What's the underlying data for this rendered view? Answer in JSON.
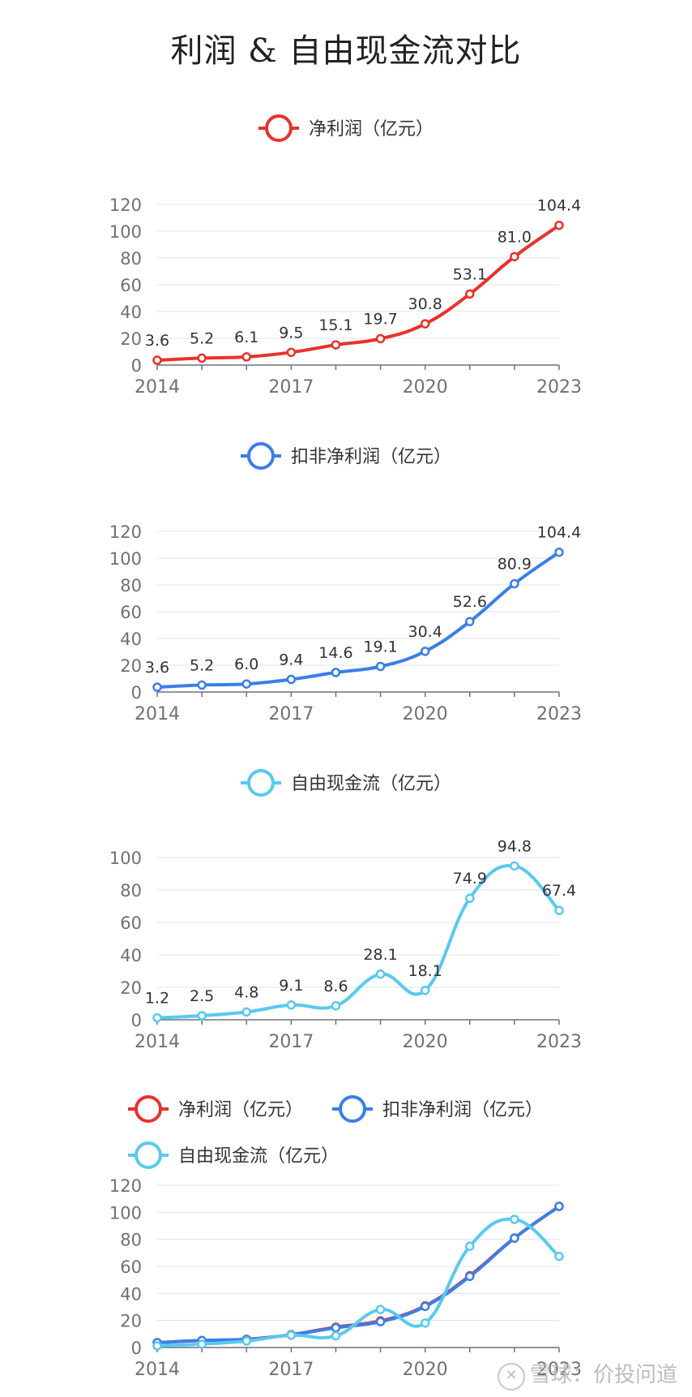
{
  "page": {
    "title": "利润 & 自由现金流对比"
  },
  "watermark": {
    "logo": "✕",
    "text": "雪球：价投问道"
  },
  "colors": {
    "net_profit": "#e8322b",
    "deducted_profit": "#3a7fe8",
    "free_cash_flow": "#59c9f0",
    "grid": "#e0e3f0",
    "axis": "#6e7079"
  },
  "chart_data": [
    {
      "type": "line",
      "x": [
        2014,
        2015,
        2016,
        2017,
        2018,
        2019,
        2020,
        2021,
        2022,
        2023
      ],
      "x_ticks": [
        "2014",
        "2017",
        "2020",
        "2023"
      ],
      "ylim": [
        0,
        120
      ],
      "y_ticks": [
        0,
        20,
        40,
        60,
        80,
        100,
        120
      ],
      "grid": true,
      "legend_position": "top-center",
      "series": [
        {
          "name": "净利润（亿元）",
          "color": "#e8322b",
          "values": [
            3.6,
            5.2,
            6.1,
            9.5,
            15.1,
            19.7,
            30.8,
            53.1,
            81.0,
            104.4
          ],
          "labels": [
            "3.6",
            "5.2",
            "6.1",
            "9.5",
            "15.1",
            "19.7",
            "30.8",
            "53.1",
            "81.0",
            "104.4"
          ]
        }
      ]
    },
    {
      "type": "line",
      "x": [
        2014,
        2015,
        2016,
        2017,
        2018,
        2019,
        2020,
        2021,
        2022,
        2023
      ],
      "x_ticks": [
        "2014",
        "2017",
        "2020",
        "2023"
      ],
      "ylim": [
        0,
        120
      ],
      "y_ticks": [
        0,
        20,
        40,
        60,
        80,
        100,
        120
      ],
      "grid": true,
      "legend_position": "top-center",
      "series": [
        {
          "name": "扣非净利润（亿元）",
          "color": "#3a7fe8",
          "values": [
            3.6,
            5.2,
            6.0,
            9.4,
            14.6,
            19.1,
            30.4,
            52.6,
            80.9,
            104.4
          ],
          "labels": [
            "3.6",
            "5.2",
            "6.0",
            "9.4",
            "14.6",
            "19.1",
            "30.4",
            "52.6",
            "80.9",
            "104.4"
          ]
        }
      ]
    },
    {
      "type": "line",
      "x": [
        2014,
        2015,
        2016,
        2017,
        2018,
        2019,
        2020,
        2021,
        2022,
        2023
      ],
      "x_ticks": [
        "2014",
        "2017",
        "2020",
        "2023"
      ],
      "ylim": [
        0,
        100
      ],
      "y_ticks": [
        0,
        20,
        40,
        60,
        80,
        100
      ],
      "grid": true,
      "legend_position": "top-center",
      "series": [
        {
          "name": "自由现金流（亿元）",
          "color": "#59c9f0",
          "values": [
            1.2,
            2.5,
            4.8,
            9.1,
            8.6,
            28.1,
            18.1,
            74.9,
            94.8,
            67.4
          ],
          "labels": [
            "1.2",
            "2.5",
            "4.8",
            "9.1",
            "8.6",
            "28.1",
            "18.1",
            "74.9",
            "94.8",
            "67.4"
          ]
        }
      ]
    },
    {
      "type": "line",
      "x": [
        2014,
        2015,
        2016,
        2017,
        2018,
        2019,
        2020,
        2021,
        2022,
        2023
      ],
      "x_ticks": [
        "2014",
        "2017",
        "2020",
        "2023"
      ],
      "ylim": [
        0,
        120
      ],
      "y_ticks": [
        0,
        20,
        40,
        60,
        80,
        100,
        120
      ],
      "grid": true,
      "legend_position": "top-left",
      "series": [
        {
          "name": "净利润（亿元）",
          "color": "#e8322b",
          "values": [
            3.6,
            5.2,
            6.1,
            9.5,
            15.1,
            19.7,
            30.8,
            53.1,
            81.0,
            104.4
          ]
        },
        {
          "name": "扣非净利润（亿元）",
          "color": "#3a7fe8",
          "values": [
            3.6,
            5.2,
            6.0,
            9.4,
            14.6,
            19.1,
            30.4,
            52.6,
            80.9,
            104.4
          ]
        },
        {
          "name": "自由现金流（亿元）",
          "color": "#59c9f0",
          "values": [
            1.2,
            2.5,
            4.8,
            9.1,
            8.6,
            28.1,
            18.1,
            74.9,
            94.8,
            67.4
          ]
        }
      ]
    }
  ]
}
